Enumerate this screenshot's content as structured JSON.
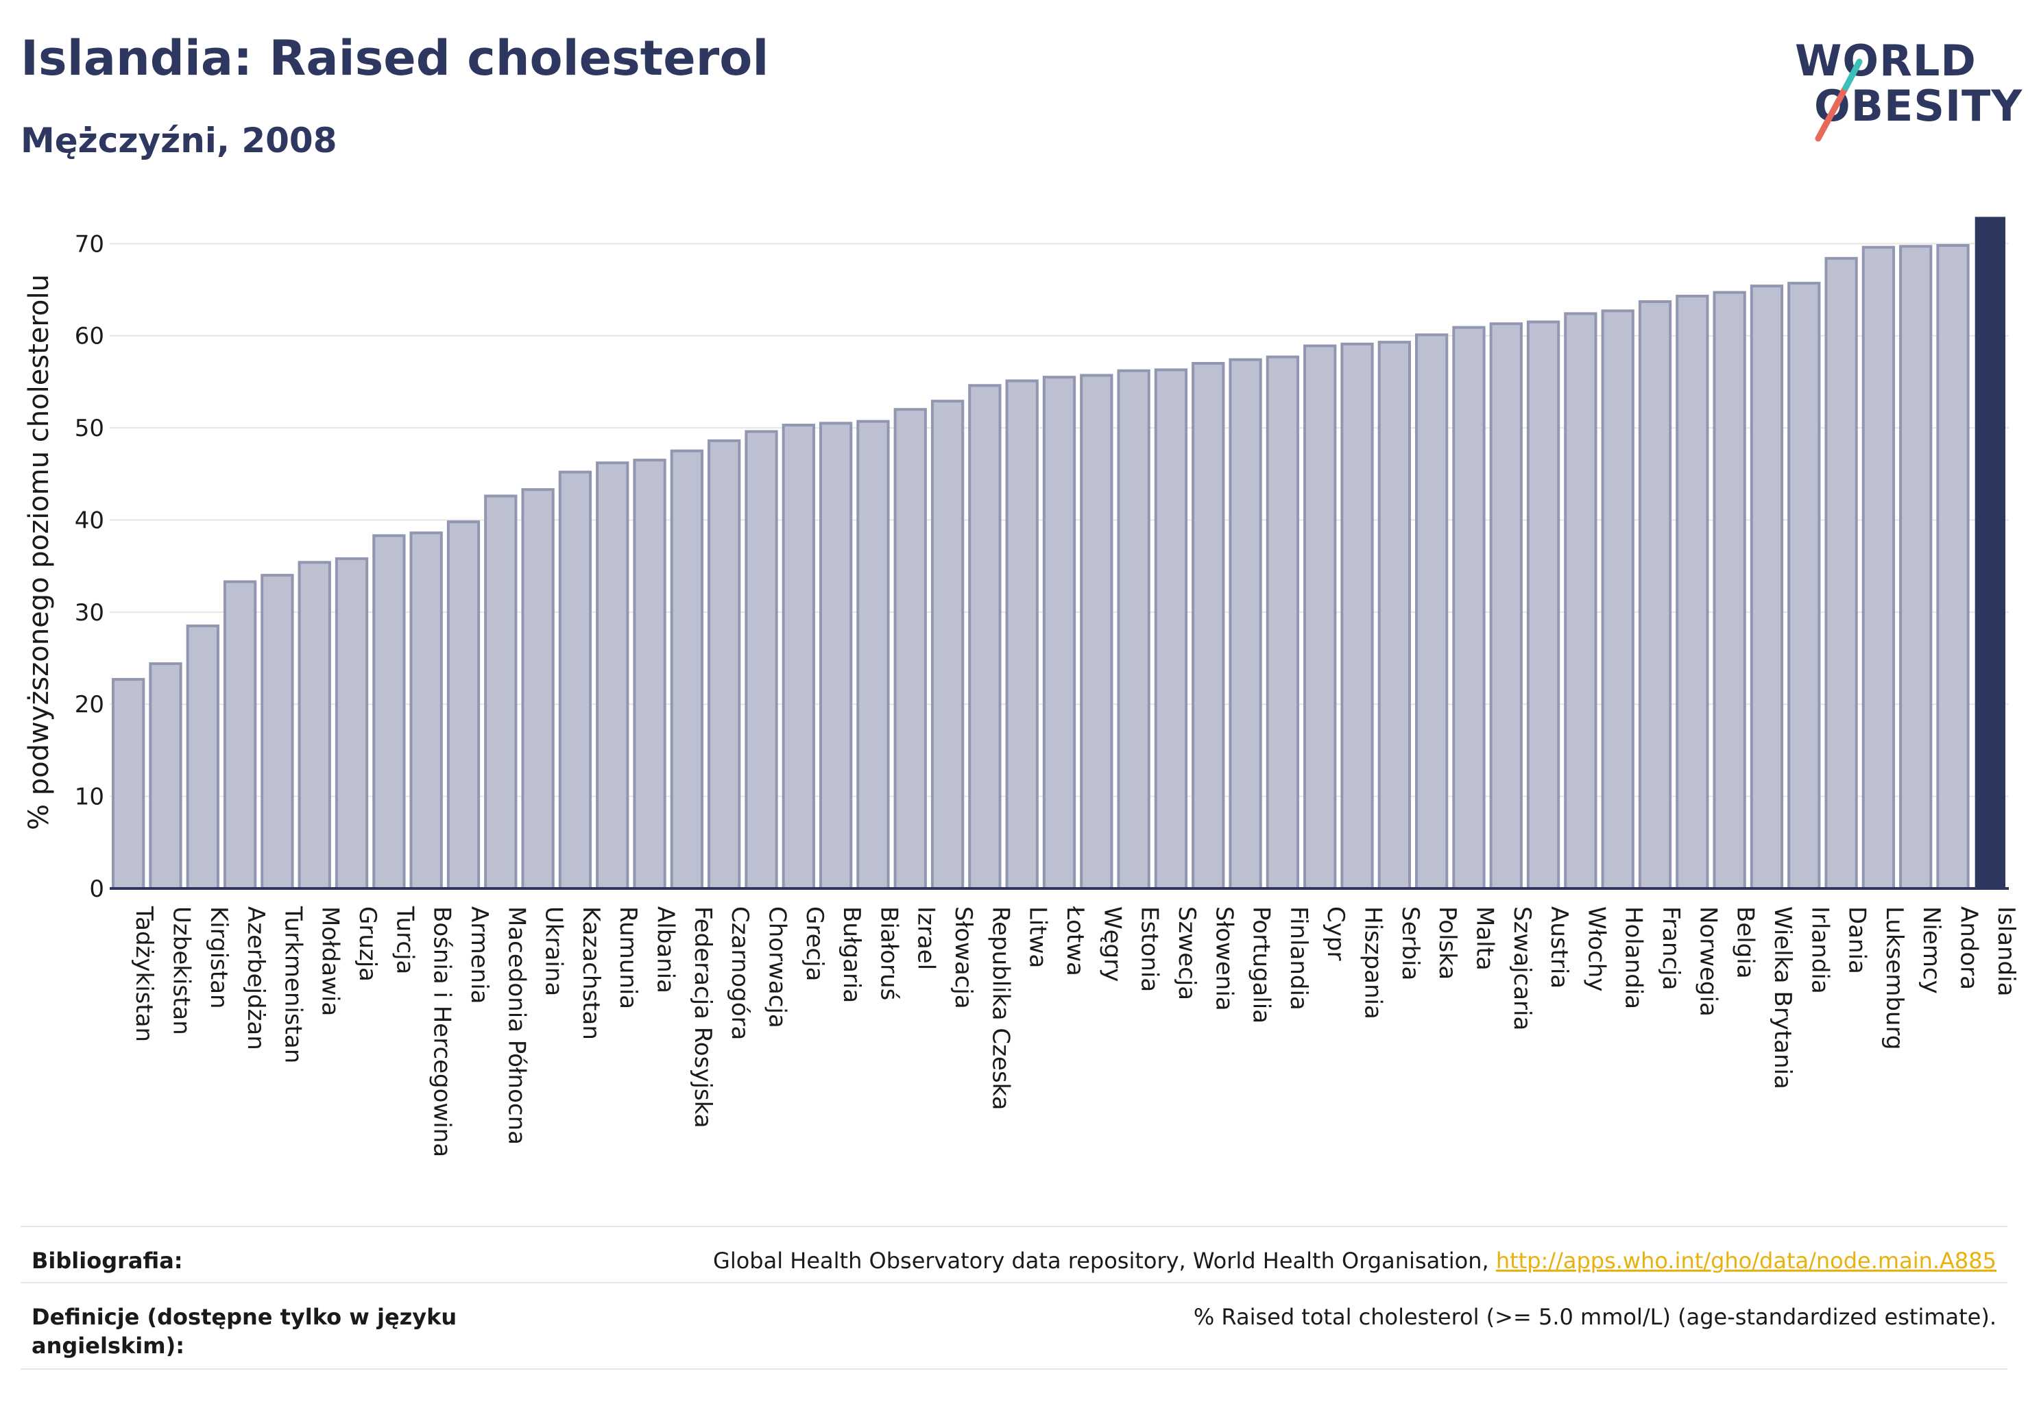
{
  "header": {
    "title": "Islandia: Raised cholesterol",
    "subtitle": "Mężczyźni, 2008"
  },
  "logo": {
    "line1": "WORLD",
    "line2": "OBESITY",
    "slash_colors": [
      "#e8685a",
      "#3bbfb8"
    ]
  },
  "colors": {
    "bar_fill": "#bcc0d0",
    "bar_stroke": "#9297b1",
    "highlight": "#2d3760",
    "grid": "#e6e6e6",
    "link": "#e8b10d"
  },
  "chart_data": {
    "type": "bar",
    "ylabel": "% podwyższonego poziomu cholesterolu",
    "ylim": [
      0,
      73
    ],
    "yticks": [
      0,
      10,
      20,
      30,
      40,
      50,
      60,
      70
    ],
    "grid": true,
    "highlight": "Islandia",
    "categories": [
      "Tadżykistan",
      "Uzbekistan",
      "Kirgistan",
      "Azerbejdżan",
      "Turkmenistan",
      "Mołdawia",
      "Gruzja",
      "Turcja",
      "Bośnia i Hercegowina",
      "Armenia",
      "Macedonia Północna",
      "Ukraina",
      "Kazachstan",
      "Rumunia",
      "Albania",
      "Federacja Rosyjska",
      "Czarnogóra",
      "Chorwacja",
      "Grecja",
      "Bułgaria",
      "Białoruś",
      "Izrael",
      "Słowacja",
      "Republika Czeska",
      "Litwa",
      "Łotwa",
      "Węgry",
      "Estonia",
      "Szwecja",
      "Słowenia",
      "Portugalia",
      "Finlandia",
      "Cypr",
      "Hiszpania",
      "Serbia",
      "Polska",
      "Malta",
      "Szwajcaria",
      "Austria",
      "Włochy",
      "Holandia",
      "Francja",
      "Norwegia",
      "Belgia",
      "Wielka Brytania",
      "Irlandia",
      "Dania",
      "Luksemburg",
      "Niemcy",
      "Andora",
      "Islandia"
    ],
    "values": [
      22.7,
      24.4,
      28.5,
      33.3,
      34.0,
      35.4,
      35.8,
      38.3,
      38.6,
      39.8,
      42.6,
      43.3,
      45.2,
      46.2,
      46.5,
      47.5,
      48.6,
      49.6,
      50.3,
      50.5,
      50.7,
      52.0,
      52.9,
      54.6,
      55.1,
      55.5,
      55.7,
      56.2,
      56.3,
      57.0,
      57.4,
      57.7,
      58.9,
      59.1,
      59.3,
      60.1,
      60.9,
      61.3,
      61.5,
      62.4,
      62.7,
      63.7,
      64.3,
      64.7,
      65.4,
      65.7,
      68.4,
      69.6,
      69.7,
      69.8,
      72.9
    ]
  },
  "footer": {
    "bibliography_label": "Bibliografia:",
    "bibliography_text": "Global Health Observatory data repository, World Health Organisation, ",
    "bibliography_link": "http://apps.who.int/gho/data/node.main.A885",
    "definitions_label": "Definicje (dostępne tylko w języku angielskim):",
    "definitions_text": "% Raised total cholesterol (>= 5.0 mmol/L) (age-standardized estimate)."
  }
}
